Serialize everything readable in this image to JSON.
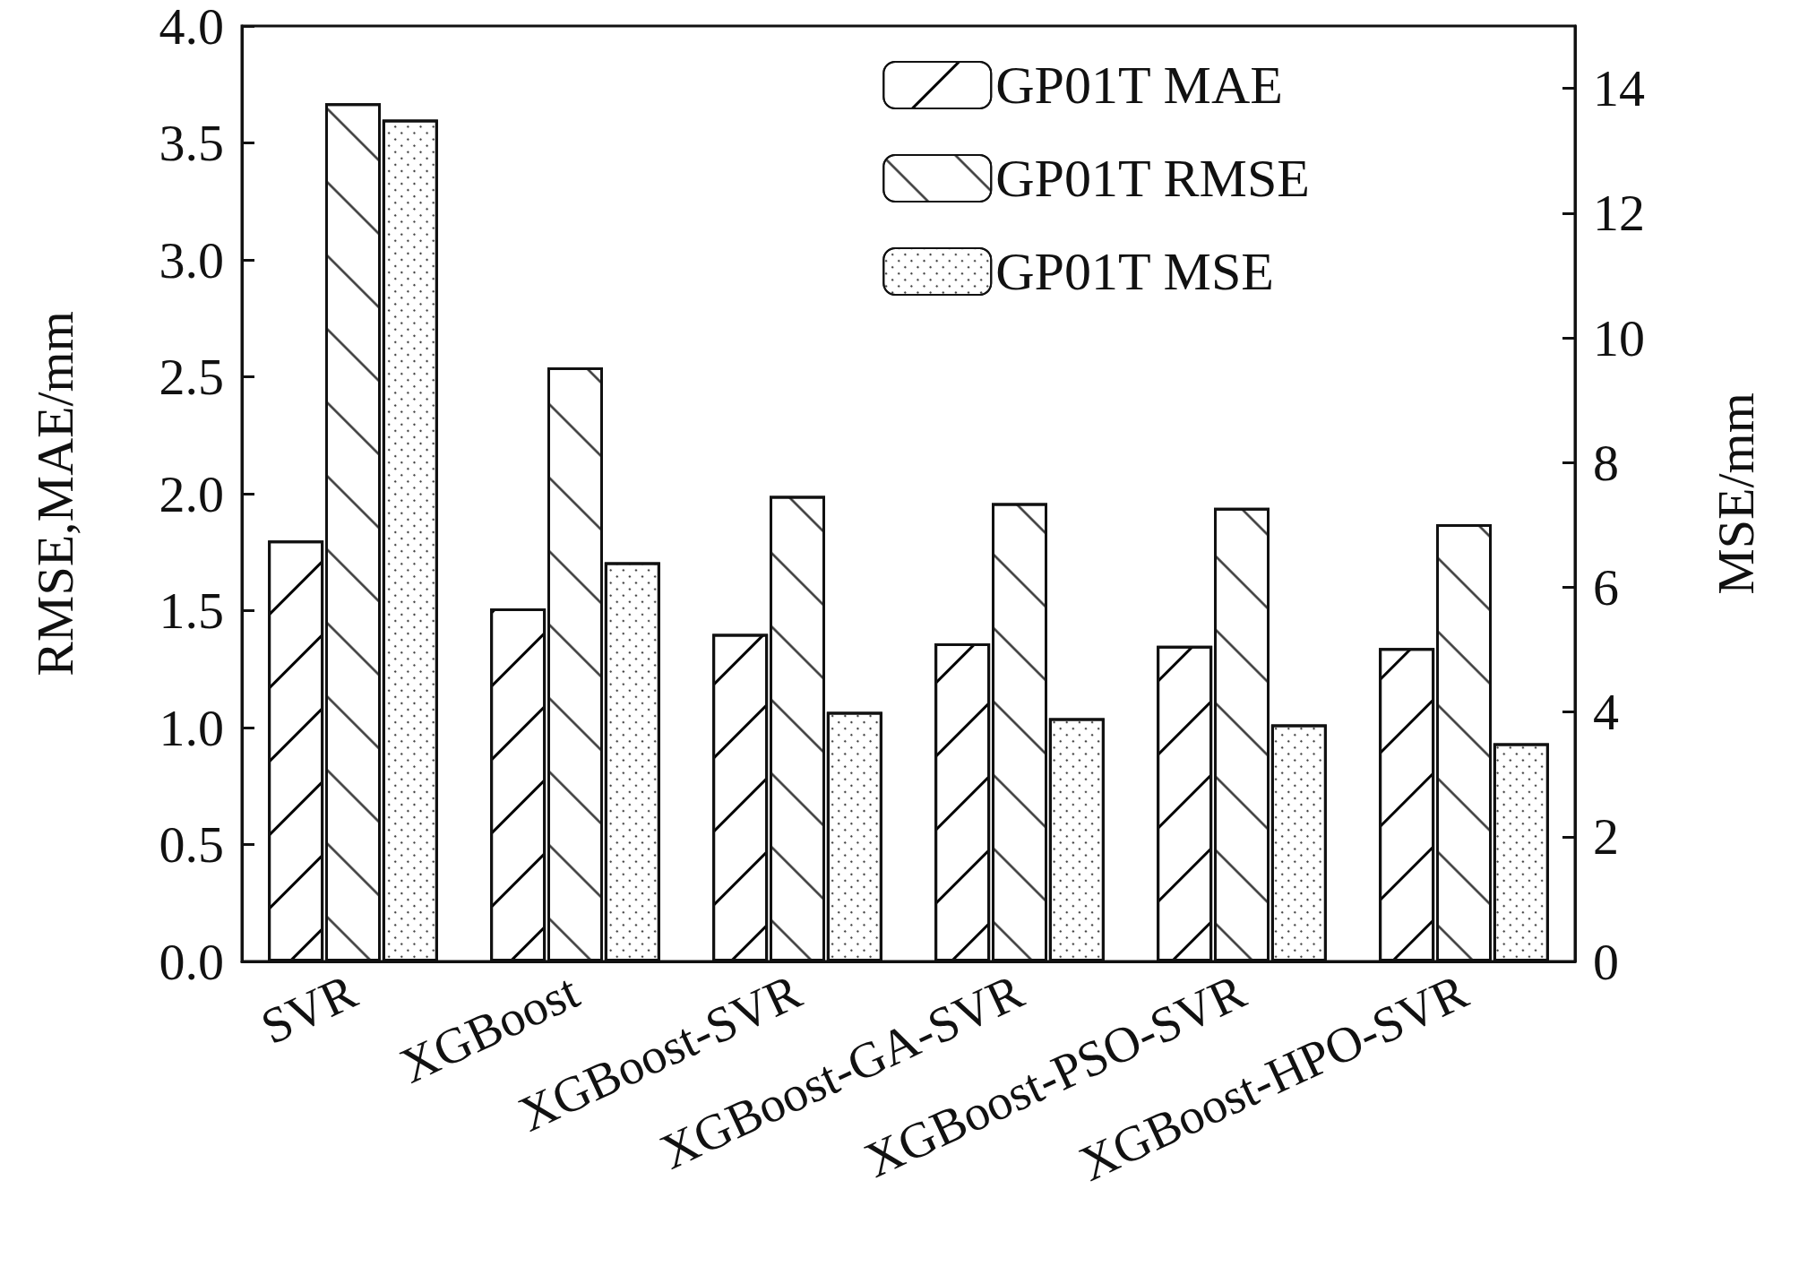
{
  "chart_data": {
    "type": "bar",
    "ylabel": "RMSE,MAE/mm",
    "y2label": "MSE/mm",
    "categories": [
      "SVR",
      "XGBoost",
      "XGBoost-SVR",
      "XGBoost-GA-SVR",
      "XGBoost-PSO-SVR",
      "XGBoost-HPO-SVR"
    ],
    "series": [
      {
        "name": "GP01T MAE",
        "color": "#ffffff",
        "values": [
          1.8,
          1.51,
          1.4,
          1.36,
          1.35,
          1.34
        ]
      },
      {
        "name": "GP01T RMSE",
        "color": "#ffffff",
        "values": [
          3.67,
          2.54,
          1.99,
          1.96,
          1.94,
          1.87
        ]
      },
      {
        "name": "GP01T MSE",
        "color": "#ffffff",
        "axis": "y2",
        "values": [
          13.5,
          6.4,
          4.0,
          3.9,
          3.8,
          3.5
        ]
      }
    ],
    "ylim": [
      0,
      4
    ],
    "yticks": [
      {
        "value": 0,
        "label": "0.0"
      },
      0.5,
      {
        "value": 1,
        "label": "1.0"
      },
      1.5,
      {
        "value": 2,
        "label": "2.0"
      },
      2.5,
      {
        "value": 3,
        "label": "3.0"
      },
      3.5,
      {
        "value": 4,
        "label": "4.0"
      }
    ],
    "y2lim": [
      0,
      15
    ],
    "y2ticks": [
      0,
      2,
      4,
      6,
      8,
      10,
      12,
      14
    ],
    "legend": "top right",
    "grid": false
  }
}
